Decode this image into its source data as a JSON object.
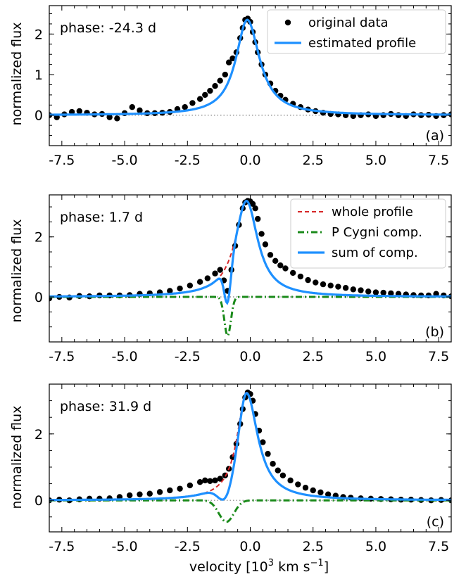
{
  "figure": {
    "xlabel": "velocity [10",
    "xlabel_sup1": "3",
    "xlabel_mid": " km s",
    "xlabel_sup2": "−1",
    "ylabel": "normalized flux"
  },
  "colors": {
    "data": "#000000",
    "estimated": "#1e90ff",
    "whole": "#d62728",
    "pcygni": "#1a8a1a",
    "zero_line": "#808080"
  },
  "chart_data": [
    {
      "type": "line",
      "panel_label": "(a)",
      "phase_text": "phase: -24.3 d",
      "xlim": [
        -8,
        8
      ],
      "ylim": [
        -0.75,
        2.7
      ],
      "xticks": [
        "-7.5",
        "-5.0",
        "-2.5",
        "0.0",
        "2.5",
        "5.0",
        "7.5"
      ],
      "yticks": [
        "0",
        "1",
        "2"
      ],
      "legend": [
        {
          "label": "original data",
          "style": "dot"
        },
        {
          "label": "estimated profile",
          "style": "solid-blue"
        }
      ],
      "legend_loc": "top-right",
      "profile": {
        "center": -0.12,
        "peak": 2.35,
        "wl": 0.55,
        "wr": 0.6
      },
      "pcygni": null,
      "data_points": {
        "x": [
          -8.0,
          -7.7,
          -7.4,
          -7.1,
          -6.8,
          -6.5,
          -6.2,
          -5.9,
          -5.6,
          -5.3,
          -5.0,
          -4.7,
          -4.4,
          -4.1,
          -3.8,
          -3.5,
          -3.2,
          -2.9,
          -2.6,
          -2.3,
          -2.0,
          -1.8,
          -1.6,
          -1.4,
          -1.2,
          -1.0,
          -0.85,
          -0.7,
          -0.55,
          -0.4,
          -0.3,
          -0.2,
          -0.1,
          0.0,
          0.1,
          0.2,
          0.3,
          0.45,
          0.6,
          0.8,
          1.0,
          1.2,
          1.4,
          1.7,
          2.0,
          2.3,
          2.6,
          2.9,
          3.2,
          3.5,
          3.8,
          4.1,
          4.4,
          4.7,
          5.0,
          5.3,
          5.6,
          5.9,
          6.2,
          6.5,
          6.8,
          7.1,
          7.4,
          7.7,
          8.0
        ],
        "y": [
          0.0,
          -0.05,
          0.02,
          0.08,
          0.1,
          0.06,
          0.02,
          0.03,
          -0.05,
          -0.08,
          0.05,
          0.2,
          0.12,
          0.05,
          0.05,
          0.06,
          0.08,
          0.15,
          0.2,
          0.3,
          0.4,
          0.5,
          0.6,
          0.72,
          0.85,
          1.0,
          1.3,
          1.4,
          1.55,
          1.9,
          2.15,
          2.35,
          2.38,
          2.3,
          2.05,
          1.8,
          1.55,
          1.25,
          1.0,
          0.78,
          0.6,
          0.48,
          0.38,
          0.28,
          0.2,
          0.14,
          0.1,
          0.06,
          0.03,
          0.02,
          0.0,
          -0.02,
          0.0,
          0.02,
          -0.02,
          0.0,
          0.03,
          0.0,
          -0.02,
          0.02,
          0.0,
          0.01,
          -0.02,
          0.0,
          0.02
        ]
      }
    },
    {
      "type": "line",
      "panel_label": "(b)",
      "phase_text": "phase: 1.7 d",
      "xlim": [
        -8,
        8
      ],
      "ylim": [
        -1.5,
        3.4
      ],
      "xticks": [
        "-7.5",
        "-5.0",
        "-2.5",
        "0.0",
        "2.5",
        "5.0",
        "7.5"
      ],
      "yticks": [
        "0",
        "2"
      ],
      "legend": [
        {
          "label": "whole profile",
          "style": "dashed-red"
        },
        {
          "label": "P Cygni comp.",
          "style": "dashdot-green"
        },
        {
          "label": "sum of comp.",
          "style": "solid-blue"
        }
      ],
      "legend_loc": "top-right",
      "profile": {
        "center": -0.15,
        "peak": 3.2,
        "wl": 0.55,
        "wr": 0.55
      },
      "pcygni": {
        "center": -0.9,
        "depth": 1.3,
        "width": 0.13
      },
      "data_points": {
        "x": [
          -8.0,
          -7.6,
          -7.2,
          -6.8,
          -6.4,
          -6.0,
          -5.6,
          -5.2,
          -4.8,
          -4.4,
          -4.0,
          -3.6,
          -3.2,
          -2.8,
          -2.4,
          -2.0,
          -1.7,
          -1.4,
          -1.2,
          -1.05,
          -0.9,
          -0.75,
          -0.6,
          -0.45,
          -0.3,
          -0.2,
          -0.1,
          0.0,
          0.1,
          0.2,
          0.3,
          0.45,
          0.6,
          0.8,
          1.0,
          1.2,
          1.4,
          1.7,
          2.0,
          2.3,
          2.6,
          2.9,
          3.2,
          3.5,
          3.8,
          4.1,
          4.4,
          4.7,
          5.0,
          5.3,
          5.6,
          5.9,
          6.2,
          6.5,
          6.8,
          7.1,
          7.4,
          7.7,
          8.0
        ],
        "y": [
          -0.05,
          0.0,
          -0.02,
          0.03,
          0.02,
          0.05,
          0.05,
          0.05,
          0.06,
          0.1,
          0.12,
          0.15,
          0.2,
          0.28,
          0.38,
          0.5,
          0.62,
          0.78,
          0.9,
          0.55,
          0.2,
          0.9,
          1.7,
          2.4,
          2.95,
          3.15,
          3.2,
          3.18,
          3.1,
          2.95,
          2.6,
          2.1,
          1.75,
          1.4,
          1.2,
          1.05,
          0.95,
          0.8,
          0.68,
          0.56,
          0.48,
          0.42,
          0.38,
          0.34,
          0.3,
          0.25,
          0.22,
          0.18,
          0.15,
          0.14,
          0.12,
          0.1,
          0.08,
          0.06,
          0.05,
          0.05,
          0.1,
          0.05,
          0.02
        ]
      }
    },
    {
      "type": "line",
      "panel_label": "(c)",
      "phase_text": "phase: 31.9 d",
      "xlim": [
        -8,
        8
      ],
      "ylim": [
        -0.95,
        3.5
      ],
      "xticks": [
        "-7.5",
        "-5.0",
        "-2.5",
        "0.0",
        "2.5",
        "5.0",
        "7.5"
      ],
      "yticks": [
        "0",
        "2"
      ],
      "legend": [],
      "legend_loc": "none",
      "profile": {
        "center": -0.15,
        "peak": 3.25,
        "wl": 0.45,
        "wr": 0.55
      },
      "pcygni": {
        "center": -0.95,
        "depth": 0.65,
        "width": 0.3
      },
      "data_points": {
        "x": [
          -8.0,
          -7.6,
          -7.2,
          -6.8,
          -6.4,
          -6.0,
          -5.6,
          -5.2,
          -4.8,
          -4.4,
          -4.0,
          -3.6,
          -3.2,
          -2.8,
          -2.4,
          -2.0,
          -1.8,
          -1.6,
          -1.4,
          -1.2,
          -1.0,
          -0.85,
          -0.7,
          -0.55,
          -0.4,
          -0.3,
          -0.2,
          -0.1,
          0.0,
          0.1,
          0.2,
          0.35,
          0.5,
          0.7,
          0.9,
          1.1,
          1.3,
          1.6,
          1.9,
          2.2,
          2.5,
          2.8,
          3.1,
          3.4,
          3.7,
          4.0,
          4.4,
          4.8,
          5.2,
          5.6,
          6.0,
          6.4,
          6.8,
          7.2,
          7.6,
          8.0
        ],
        "y": [
          0.0,
          0.02,
          0.0,
          0.03,
          0.05,
          0.05,
          0.06,
          0.1,
          0.15,
          0.18,
          0.2,
          0.25,
          0.3,
          0.35,
          0.45,
          0.55,
          0.6,
          0.58,
          0.6,
          0.65,
          0.75,
          0.95,
          1.3,
          1.7,
          2.3,
          2.75,
          3.1,
          3.25,
          3.2,
          3.0,
          2.6,
          2.1,
          1.75,
          1.4,
          1.1,
          0.9,
          0.75,
          0.6,
          0.48,
          0.38,
          0.3,
          0.24,
          0.18,
          0.14,
          0.1,
          0.08,
          0.06,
          0.05,
          0.04,
          0.03,
          0.02,
          0.02,
          0.01,
          0.0,
          0.01,
          0.0
        ]
      }
    }
  ]
}
